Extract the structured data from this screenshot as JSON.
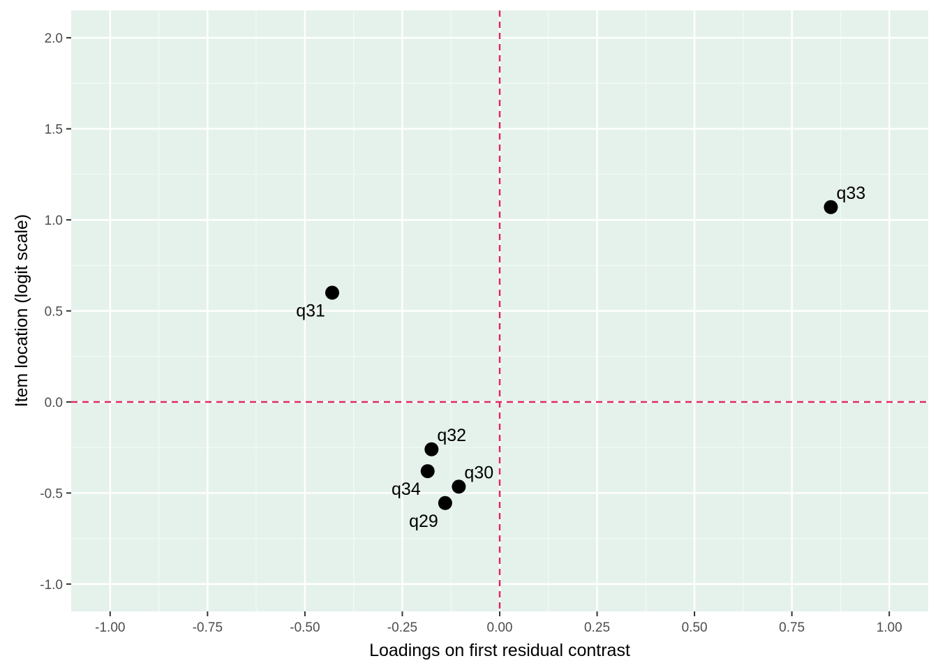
{
  "chart_data": {
    "type": "scatter",
    "title": "",
    "xlabel": "Loadings on first residual contrast",
    "ylabel": "Item location (logit scale)",
    "xlim": [
      -1.1,
      1.1
    ],
    "ylim": [
      -1.15,
      2.15
    ],
    "x_ticks": [
      -1.0,
      -0.75,
      -0.5,
      -0.25,
      0.0,
      0.25,
      0.5,
      0.75,
      1.0
    ],
    "x_tick_labels": [
      "-1.00",
      "-0.75",
      "-0.50",
      "-0.25",
      "0.00",
      "0.25",
      "0.50",
      "0.75",
      "1.00"
    ],
    "y_ticks": [
      -1.0,
      -0.5,
      0.0,
      0.5,
      1.0,
      1.5,
      2.0
    ],
    "y_tick_labels": [
      "-1.0",
      "-0.5",
      "0.0",
      "0.5",
      "1.0",
      "1.5",
      "2.0"
    ],
    "reference_lines": {
      "x": 0.0,
      "y": 0.0,
      "style": "dashed"
    },
    "grid": true,
    "points": [
      {
        "label": "q33",
        "x": 0.85,
        "y": 1.07,
        "label_side": "upper-right"
      },
      {
        "label": "q31",
        "x": -0.43,
        "y": 0.6,
        "label_side": "lower-left"
      },
      {
        "label": "q32",
        "x": -0.175,
        "y": -0.26,
        "label_side": "upper-right"
      },
      {
        "label": "q34",
        "x": -0.185,
        "y": -0.38,
        "label_side": "lower-left"
      },
      {
        "label": "q30",
        "x": -0.105,
        "y": -0.465,
        "label_side": "upper-right"
      },
      {
        "label": "q29",
        "x": -0.14,
        "y": -0.555,
        "label_side": "lower-left"
      }
    ]
  },
  "colors": {
    "panel_background": "#e5f2eb",
    "grid_major": "#ffffff",
    "grid_minor": "#f2f9f5",
    "reference_line": "#e0245e",
    "point": "#000000",
    "tick_mark": "#333333"
  }
}
